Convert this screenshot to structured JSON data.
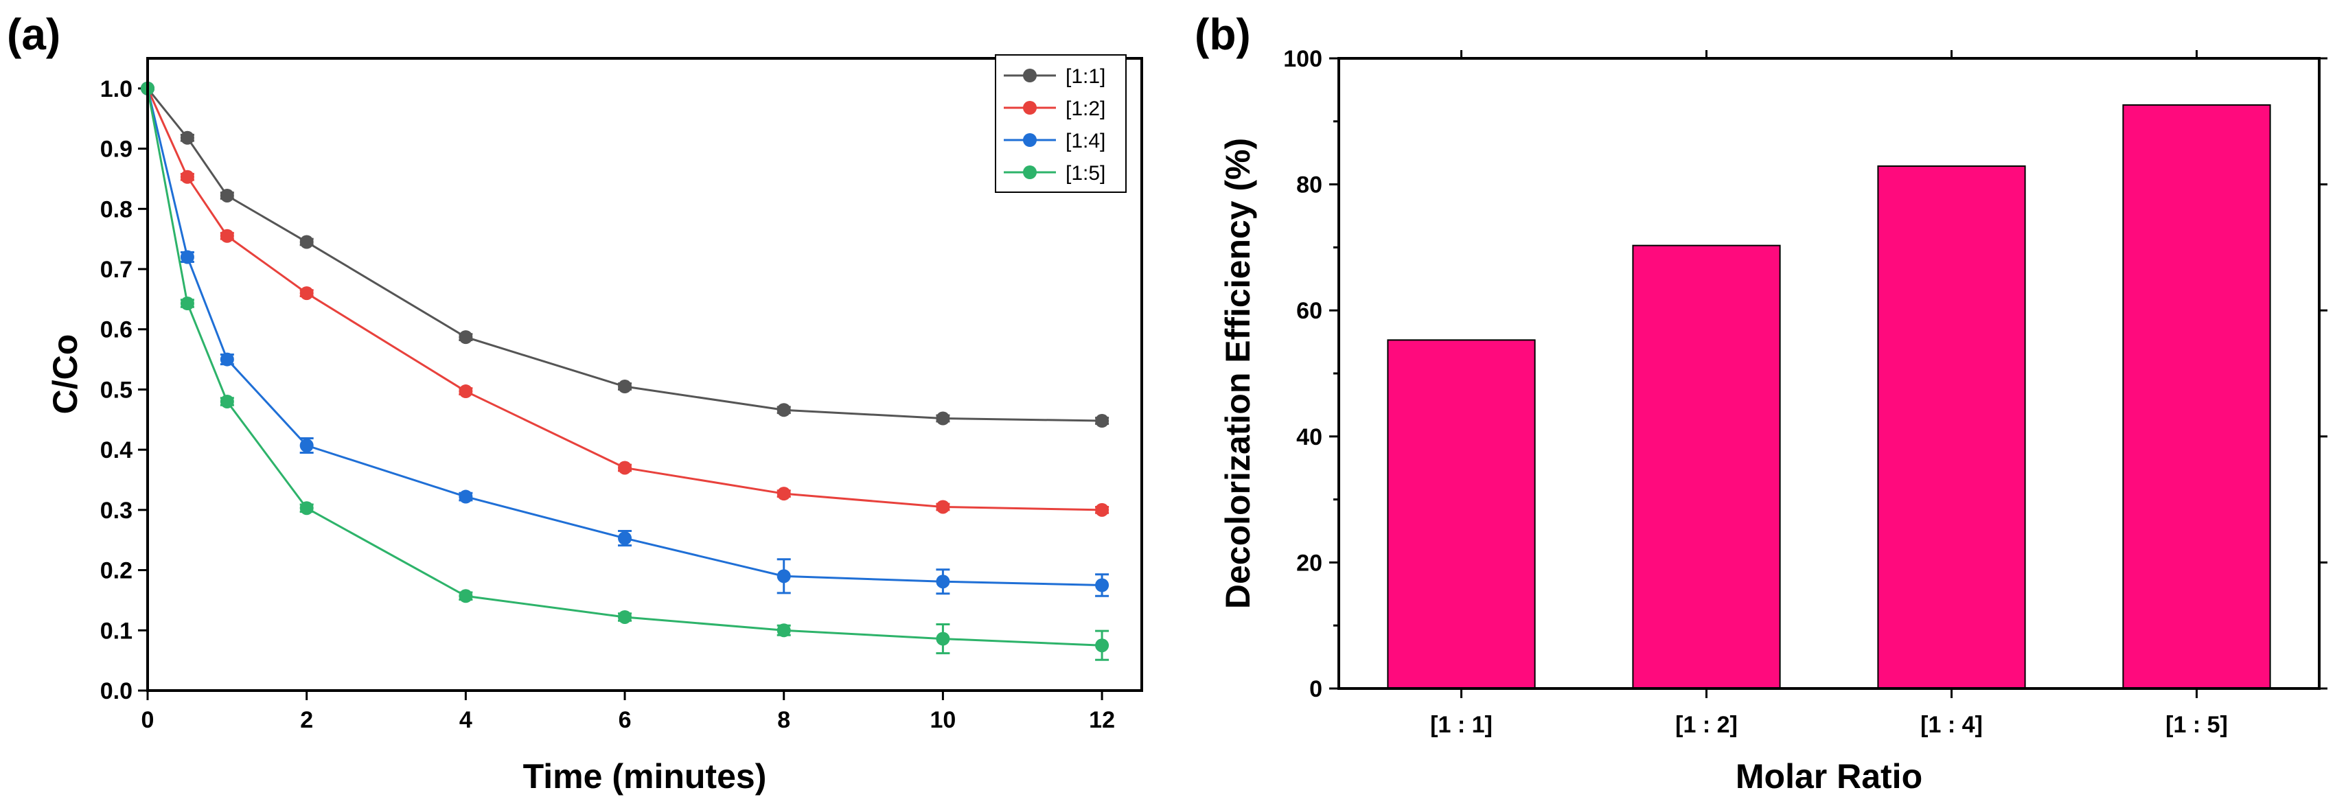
{
  "chart_data": [
    {
      "panel_label": "(a)",
      "type": "line",
      "title": "",
      "xlabel": "Time (minutes)",
      "ylabel": "C/Co",
      "xlim": [
        0,
        12.5
      ],
      "ylim": [
        0,
        1.05
      ],
      "xticks": [
        0,
        2,
        4,
        6,
        8,
        10,
        12
      ],
      "yticks": [
        0.0,
        0.1,
        0.2,
        0.3,
        0.4,
        0.5,
        0.6,
        0.7,
        0.8,
        0.9,
        1.0
      ],
      "x": [
        0,
        0.5,
        1,
        2,
        4,
        6,
        8,
        10,
        12
      ],
      "legend_position": "top-right",
      "series": [
        {
          "name": "[1:1]",
          "color": "#555555",
          "values": [
            1.0,
            0.918,
            0.822,
            0.745,
            0.587,
            0.505,
            0.466,
            0.452,
            0.448
          ],
          "errors": [
            0,
            0.005,
            0.005,
            0.005,
            0.005,
            0.005,
            0.005,
            0.005,
            0.005
          ]
        },
        {
          "name": "[1:2]",
          "color": "#e8413c",
          "values": [
            1.0,
            0.853,
            0.755,
            0.66,
            0.497,
            0.37,
            0.327,
            0.305,
            0.3
          ],
          "errors": [
            0,
            0.005,
            0.005,
            0.005,
            0.005,
            0.005,
            0.005,
            0.005,
            0.005
          ]
        },
        {
          "name": "[1:4]",
          "color": "#1f6fd6",
          "values": [
            1.0,
            0.72,
            0.55,
            0.407,
            0.322,
            0.253,
            0.19,
            0.181,
            0.175
          ],
          "errors": [
            0,
            0.008,
            0.008,
            0.012,
            0.006,
            0.012,
            0.028,
            0.02,
            0.018
          ]
        },
        {
          "name": "[1:5]",
          "color": "#2db36a",
          "values": [
            1.0,
            0.643,
            0.48,
            0.303,
            0.157,
            0.122,
            0.1,
            0.086,
            0.075
          ],
          "errors": [
            0,
            0.006,
            0.006,
            0.006,
            0.006,
            0.006,
            0.008,
            0.024,
            0.024
          ]
        }
      ]
    },
    {
      "panel_label": "(b)",
      "type": "bar",
      "title": "",
      "xlabel": "Molar Ratio",
      "ylabel": "Decolorization Efficiency (%)",
      "ylim": [
        0,
        100
      ],
      "yticks": [
        0,
        20,
        40,
        60,
        80,
        100
      ],
      "categories": [
        "[1 : 1]",
        "[1 : 2]",
        "[1 : 4]",
        "[1 : 5]"
      ],
      "values": [
        55.3,
        70.3,
        82.9,
        92.6
      ],
      "bar_color": "#ff0a7d"
    }
  ]
}
